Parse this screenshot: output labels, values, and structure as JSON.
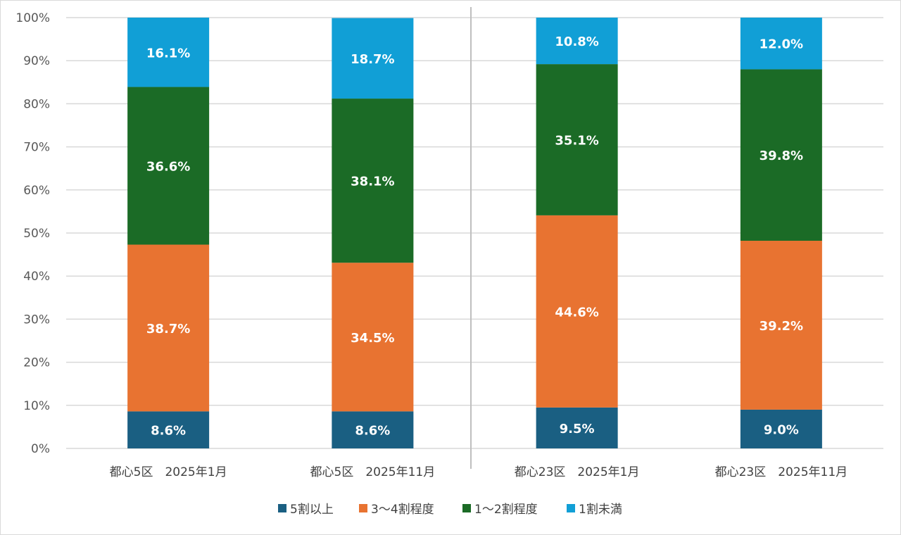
{
  "chart_data": {
    "type": "bar",
    "stacked": true,
    "title": "",
    "xlabel": "",
    "ylabel": "",
    "ylim": [
      0,
      100
    ],
    "y_ticks": [
      "0%",
      "10%",
      "20%",
      "30%",
      "40%",
      "50%",
      "60%",
      "70%",
      "80%",
      "90%",
      "100%"
    ],
    "grid": true,
    "legend_position": "bottom",
    "categories": [
      "都心5区　2025年1月",
      "都心5区　2025年11月",
      "都心23区　2025年1月",
      "都心23区　2025年11月"
    ],
    "series": [
      {
        "name": "5割以上",
        "color": "#1a5f82",
        "values": [
          8.6,
          8.6,
          9.5,
          9.0
        ],
        "labels": [
          "8.6%",
          "8.6%",
          "9.5%",
          "9.0%"
        ]
      },
      {
        "name": "3～4割程度",
        "color": "#e87331",
        "values": [
          38.7,
          34.5,
          44.6,
          39.2
        ],
        "labels": [
          "38.7%",
          "34.5%",
          "44.6%",
          "39.2%"
        ]
      },
      {
        "name": "1～2割程度",
        "color": "#1b6b26",
        "values": [
          36.6,
          38.1,
          35.1,
          39.8
        ],
        "labels": [
          "36.6%",
          "38.1%",
          "35.1%",
          "39.8%"
        ]
      },
      {
        "name": "1割未満",
        "color": "#119fd6",
        "values": [
          16.1,
          18.7,
          10.8,
          12.0
        ],
        "labels": [
          "16.1%",
          "18.7%",
          "10.8%",
          "12.0%"
        ]
      }
    ]
  }
}
